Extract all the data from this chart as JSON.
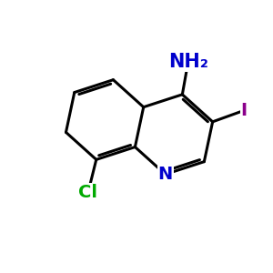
{
  "background_color": "#ffffff",
  "bond_color": "#000000",
  "bond_width": 2.2,
  "atom_NH2": {
    "label": "NH₂",
    "color": "#0000cc",
    "fontsize": 15,
    "fontweight": "bold"
  },
  "atom_I": {
    "label": "I",
    "color": "#8B008B",
    "fontsize": 14,
    "fontweight": "bold"
  },
  "atom_Cl": {
    "label": "Cl",
    "color": "#00aa00",
    "fontsize": 14,
    "fontweight": "bold"
  },
  "atom_N": {
    "label": "N",
    "color": "#0000cc",
    "fontsize": 14,
    "fontweight": "bold"
  },
  "scale": 1.3,
  "xlim": [
    -3.2,
    3.5
  ],
  "ylim": [
    -3.5,
    3.2
  ]
}
